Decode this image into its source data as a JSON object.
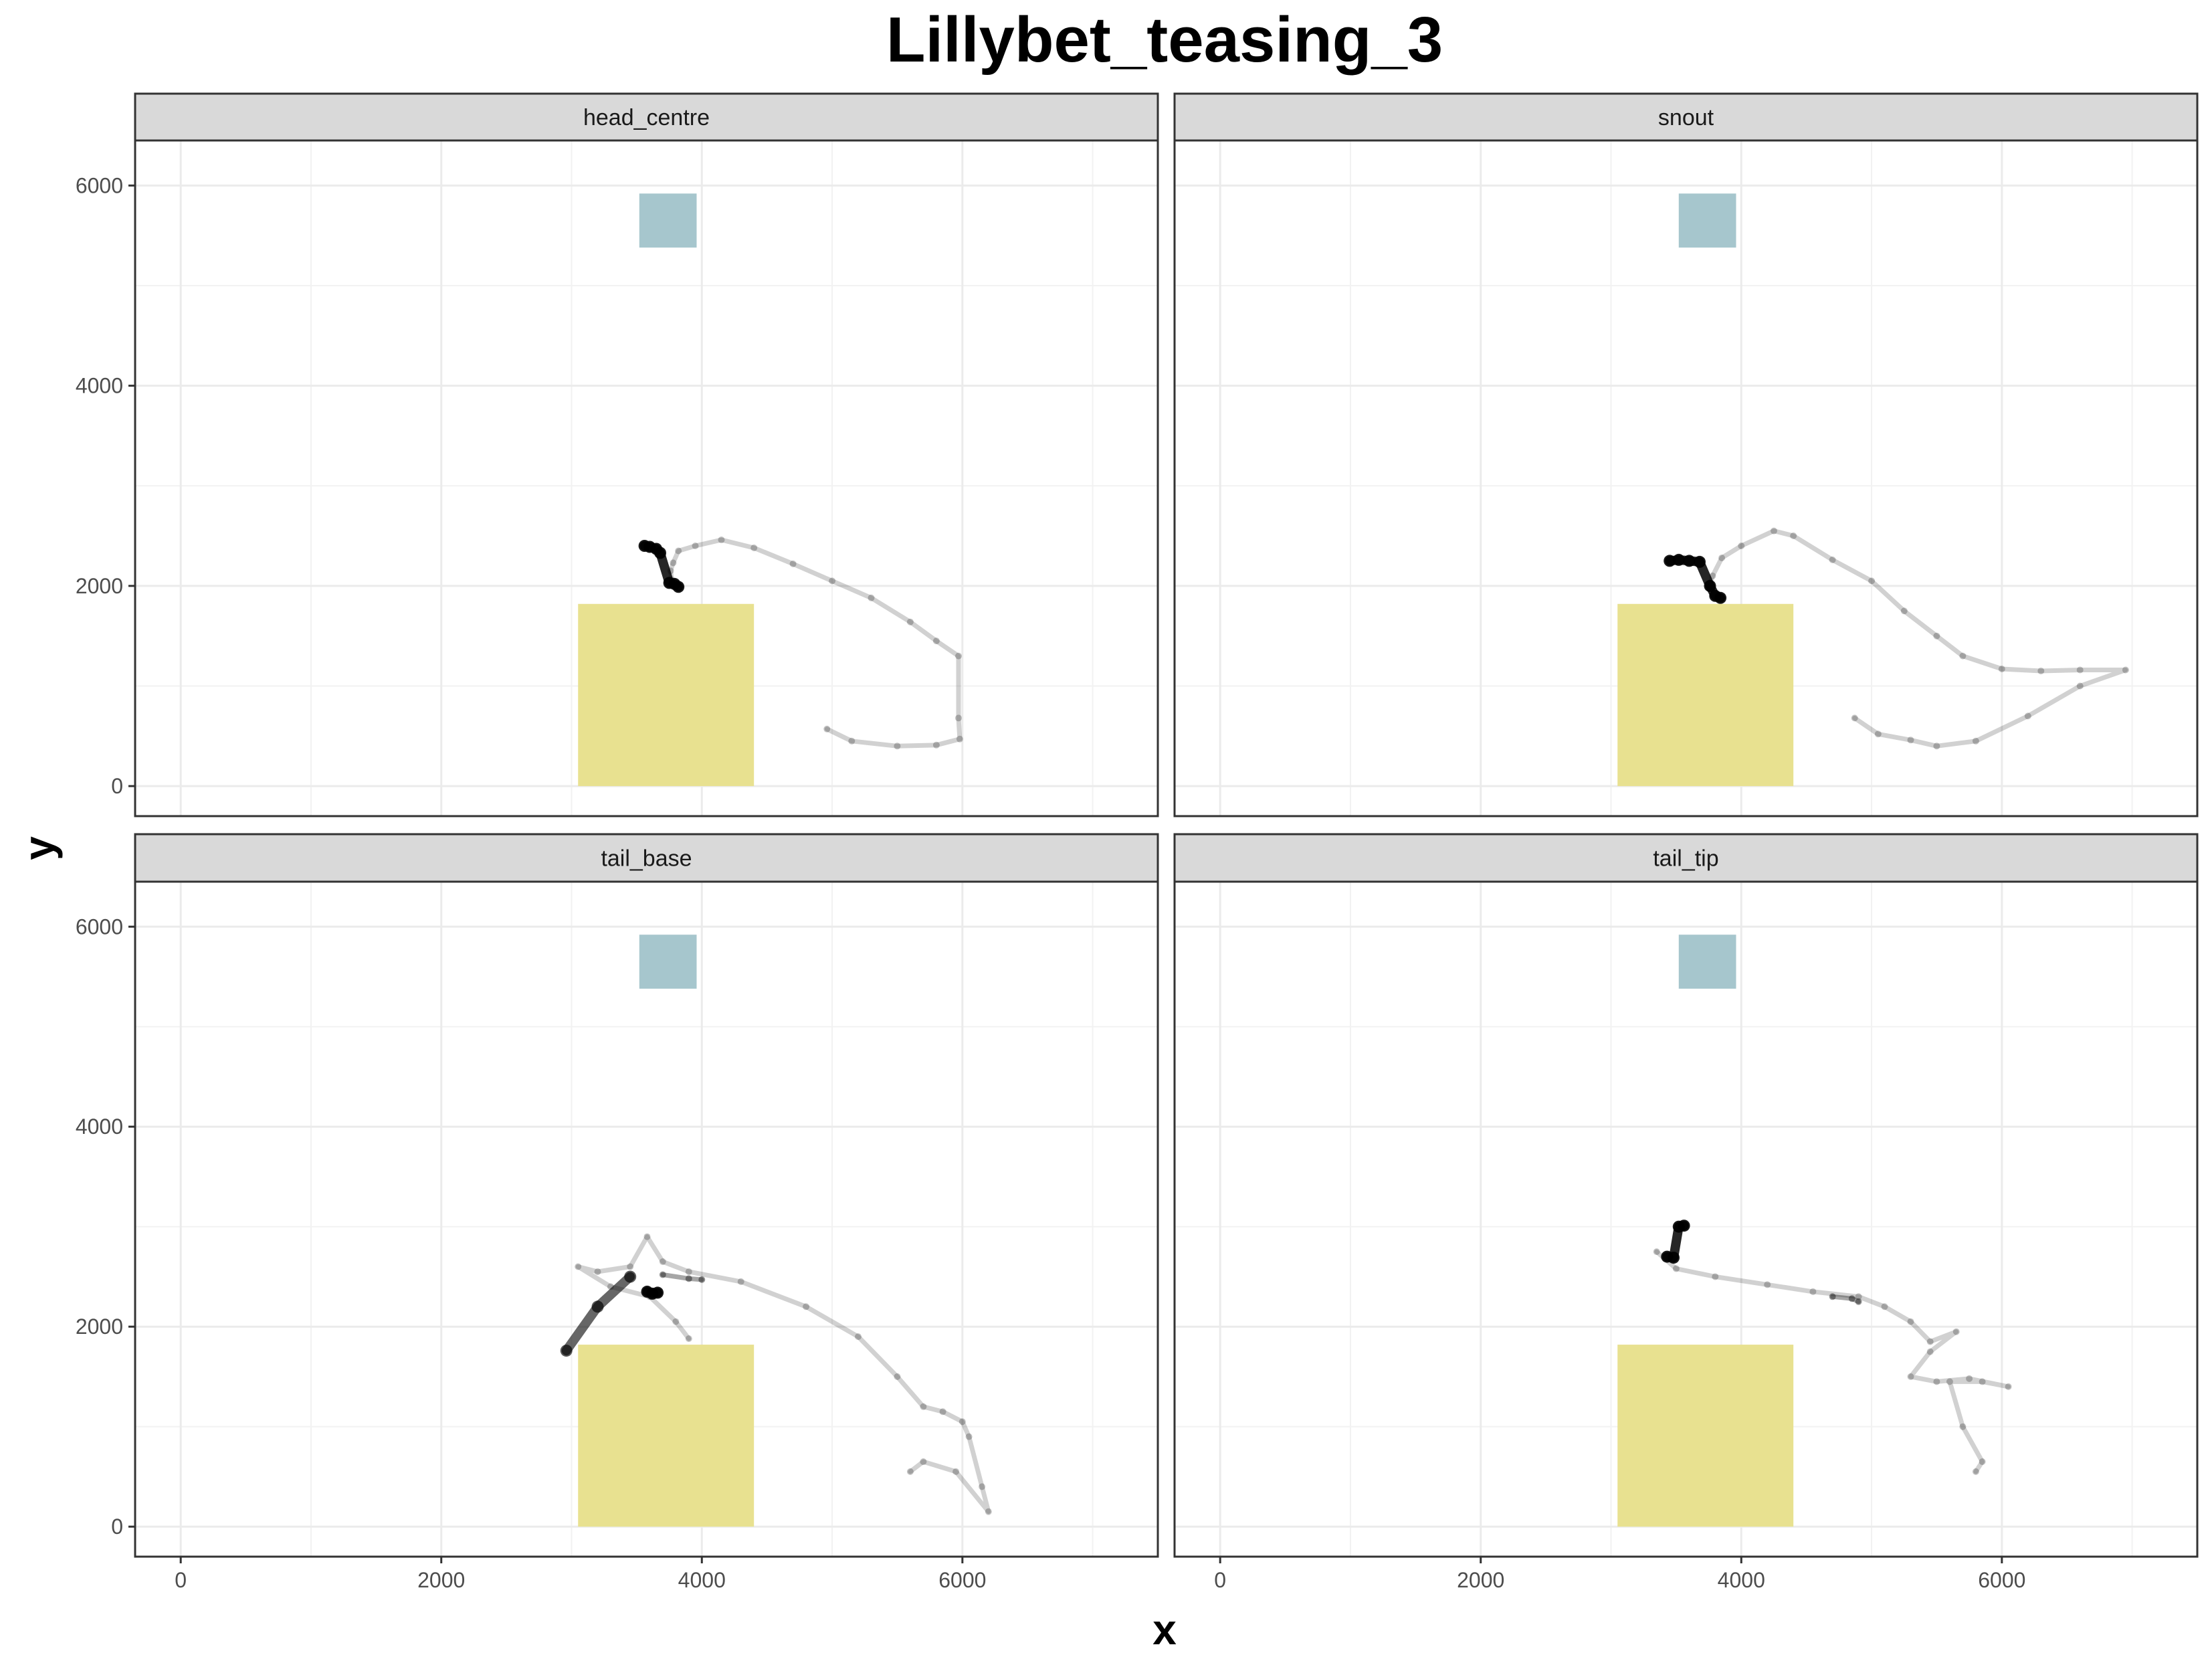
{
  "chart_data": {
    "type": "scatter",
    "facet_layout": "2x2",
    "title": "Lillybet_teasing_3",
    "xlabel": "x",
    "ylabel": "y",
    "xlim": [
      -350,
      7500
    ],
    "ylim": [
      -300,
      6450
    ],
    "xticks": [
      0,
      2000,
      4000,
      6000
    ],
    "yticks": [
      0,
      2000,
      4000,
      6000
    ],
    "x_minor_grid": [
      1000,
      3000,
      5000,
      7000
    ],
    "y_minor_grid": [
      1000,
      3000,
      5000
    ],
    "grid": true,
    "point_color": "#000000",
    "zones": [
      {
        "name": "",
        "x": [
          3050,
          4400
        ],
        "y": [
          0,
          1820
        ],
        "color": "#e8e190"
      },
      {
        "name": "",
        "x": [
          3520,
          3960
        ],
        "y": [
          5380,
          5920
        ],
        "color": "#a6c6cd"
      }
    ],
    "panels": [
      {
        "label": "head_centre",
        "tracks": [
          {
            "opacity": 0.18,
            "points": [
              [
                4960,
                570
              ],
              [
                5150,
                450
              ],
              [
                5500,
                400
              ],
              [
                5800,
                410
              ],
              [
                5980,
                470
              ],
              [
                5970,
                680
              ],
              [
                5970,
                1300
              ],
              [
                5800,
                1450
              ],
              [
                5600,
                1640
              ],
              [
                5300,
                1880
              ],
              [
                5000,
                2050
              ],
              [
                4700,
                2220
              ],
              [
                4400,
                2380
              ],
              [
                4150,
                2460
              ],
              [
                3950,
                2400
              ],
              [
                3820,
                2350
              ],
              [
                3780,
                2230
              ],
              [
                3760,
                2150
              ],
              [
                3770,
                2060
              ]
            ]
          },
          {
            "opacity": 0.85,
            "points": [
              [
                3560,
                2400
              ],
              [
                3600,
                2390
              ],
              [
                3650,
                2370
              ],
              [
                3680,
                2330
              ],
              [
                3750,
                2030
              ],
              [
                3790,
                2020
              ],
              [
                3820,
                1990
              ]
            ]
          }
        ]
      },
      {
        "label": "snout",
        "tracks": [
          {
            "opacity": 0.18,
            "points": [
              [
                4870,
                680
              ],
              [
                5050,
                520
              ],
              [
                5300,
                460
              ],
              [
                5500,
                400
              ],
              [
                5800,
                450
              ],
              [
                6200,
                700
              ],
              [
                6600,
                1000
              ],
              [
                6950,
                1160
              ],
              [
                6600,
                1160
              ],
              [
                6300,
                1150
              ],
              [
                6000,
                1170
              ],
              [
                5700,
                1300
              ],
              [
                5500,
                1500
              ],
              [
                5250,
                1750
              ],
              [
                5000,
                2050
              ],
              [
                4700,
                2260
              ],
              [
                4400,
                2500
              ],
              [
                4250,
                2550
              ],
              [
                4000,
                2400
              ],
              [
                3850,
                2280
              ],
              [
                3780,
                2100
              ],
              [
                3750,
                1980
              ]
            ]
          },
          {
            "opacity": 0.85,
            "points": [
              [
                3450,
                2250
              ],
              [
                3520,
                2260
              ],
              [
                3600,
                2250
              ],
              [
                3680,
                2240
              ],
              [
                3760,
                2000
              ],
              [
                3800,
                1900
              ],
              [
                3840,
                1880
              ]
            ]
          }
        ]
      },
      {
        "label": "tail_base",
        "tracks": [
          {
            "opacity": 0.18,
            "points": [
              [
                5600,
                550
              ],
              [
                5700,
                650
              ],
              [
                5950,
                550
              ],
              [
                6200,
                150
              ],
              [
                6150,
                400
              ],
              [
                6050,
                900
              ],
              [
                6000,
                1050
              ],
              [
                5850,
                1150
              ],
              [
                5700,
                1200
              ],
              [
                5500,
                1500
              ],
              [
                5200,
                1900
              ],
              [
                4800,
                2200
              ],
              [
                4300,
                2450
              ],
              [
                3900,
                2550
              ],
              [
                3700,
                2650
              ],
              [
                3580,
                2900
              ],
              [
                3450,
                2600
              ],
              [
                3200,
                2550
              ],
              [
                3050,
                2600
              ],
              [
                3300,
                2400
              ],
              [
                3600,
                2300
              ],
              [
                3800,
                2050
              ],
              [
                3900,
                1880
              ]
            ]
          },
          {
            "opacity": 0.35,
            "points": [
              [
                3700,
                2520
              ],
              [
                3900,
                2480
              ],
              [
                4000,
                2470
              ]
            ]
          },
          {
            "opacity": 0.6,
            "points": [
              [
                2960,
                1760
              ],
              [
                3200,
                2200
              ],
              [
                3450,
                2500
              ]
            ]
          },
          {
            "opacity": 0.85,
            "points": [
              [
                3580,
                2350
              ],
              [
                3620,
                2330
              ],
              [
                3660,
                2340
              ]
            ]
          }
        ]
      },
      {
        "label": "tail_tip",
        "tracks": [
          {
            "opacity": 0.18,
            "points": [
              [
                3350,
                2750
              ],
              [
                3500,
                2580
              ],
              [
                3800,
                2500
              ],
              [
                4200,
                2420
              ],
              [
                4550,
                2350
              ],
              [
                4900,
                2300
              ],
              [
                5100,
                2200
              ],
              [
                5300,
                2050
              ],
              [
                5450,
                1850
              ],
              [
                5650,
                1950
              ],
              [
                5450,
                1750
              ],
              [
                5300,
                1500
              ],
              [
                5500,
                1450
              ],
              [
                5750,
                1480
              ],
              [
                6050,
                1400
              ],
              [
                5850,
                1450
              ],
              [
                5600,
                1450
              ],
              [
                5700,
                1000
              ],
              [
                5850,
                650
              ],
              [
                5800,
                550
              ]
            ]
          },
          {
            "opacity": 0.35,
            "points": [
              [
                4700,
                2300
              ],
              [
                4850,
                2280
              ],
              [
                4900,
                2250
              ]
            ]
          },
          {
            "opacity": 0.85,
            "points": [
              [
                3430,
                2700
              ],
              [
                3480,
                2690
              ],
              [
                3520,
                3000
              ],
              [
                3560,
                3010
              ]
            ]
          }
        ]
      }
    ]
  }
}
